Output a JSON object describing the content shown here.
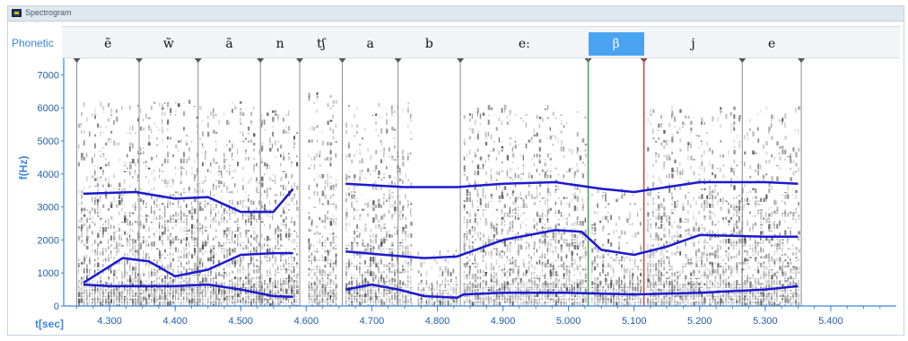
{
  "window": {
    "title": "Spectrogram"
  },
  "phonetic": {
    "label": "Phonetic",
    "segments": [
      {
        "symbol": "ẽ",
        "start": 4.25,
        "end": 4.345
      },
      {
        "symbol": "w̃",
        "start": 4.345,
        "end": 4.435
      },
      {
        "symbol": "ã",
        "start": 4.435,
        "end": 4.53
      },
      {
        "symbol": "n",
        "start": 4.53,
        "end": 4.59
      },
      {
        "symbol": "tʃ",
        "start": 4.59,
        "end": 4.655
      },
      {
        "symbol": "a",
        "start": 4.655,
        "end": 4.74
      },
      {
        "symbol": "b",
        "start": 4.74,
        "end": 4.835
      },
      {
        "symbol": "eː",
        "start": 4.835,
        "end": 5.03
      },
      {
        "symbol": "β",
        "start": 5.03,
        "end": 5.115
      },
      {
        "symbol": "j",
        "start": 5.115,
        "end": 5.265
      },
      {
        "symbol": "e",
        "start": 5.265,
        "end": 5.355
      }
    ],
    "selected_index": 8
  },
  "axes": {
    "y_label": "f(Hz)",
    "x_label": "t[sec]",
    "y_ticks": [
      "0",
      "1000",
      "2000",
      "3000",
      "4000",
      "5000",
      "6000",
      "7000"
    ],
    "x_ticks": [
      "4.300",
      "4.400",
      "4.500",
      "4.600",
      "4.700",
      "4.800",
      "4.900",
      "5.000",
      "5.100",
      "5.200",
      "5.300",
      "5.400"
    ]
  },
  "colors": {
    "formant": "#1a1ad0",
    "axis": "#3a86d8",
    "cursor_start": "#3fa64a",
    "cursor_end": "#d84040",
    "boundary": "#8a8a8a",
    "selected_segment": "#4aa3f0"
  },
  "chart_data": {
    "type": "line",
    "x_range": [
      4.23,
      5.5
    ],
    "y_range": [
      0,
      7500
    ],
    "cursor_start": 5.03,
    "cursor_end": 5.115,
    "boundaries": [
      4.25,
      4.345,
      4.435,
      4.53,
      4.59,
      4.655,
      4.74,
      4.835,
      5.03,
      5.115,
      5.265,
      5.355
    ],
    "energy_regions": [
      {
        "start": 4.252,
        "end": 4.585,
        "top": 6200
      },
      {
        "start": 4.603,
        "end": 4.645,
        "top": 6400
      },
      {
        "start": 4.66,
        "end": 4.76,
        "top": 6200
      },
      {
        "start": 4.77,
        "end": 4.83,
        "top": 1800
      },
      {
        "start": 4.84,
        "end": 5.025,
        "top": 6000
      },
      {
        "start": 5.035,
        "end": 5.11,
        "top": 3500
      },
      {
        "start": 5.12,
        "end": 5.35,
        "top": 6000
      }
    ],
    "series": [
      {
        "name": "F1",
        "points": [
          [
            4.26,
            650
          ],
          [
            4.3,
            600
          ],
          [
            4.4,
            600
          ],
          [
            4.45,
            650
          ],
          [
            4.5,
            500
          ],
          [
            4.55,
            300
          ],
          [
            4.58,
            280
          ],
          null,
          [
            4.66,
            500
          ],
          [
            4.7,
            650
          ],
          [
            4.74,
            500
          ],
          [
            4.78,
            300
          ],
          [
            4.83,
            250
          ],
          [
            4.84,
            350
          ],
          [
            4.9,
            400
          ],
          [
            5.0,
            400
          ],
          [
            5.1,
            350
          ],
          [
            5.2,
            400
          ],
          [
            5.3,
            500
          ],
          [
            5.35,
            600
          ]
        ]
      },
      {
        "name": "F2",
        "points": [
          [
            4.26,
            700
          ],
          [
            4.32,
            1450
          ],
          [
            4.36,
            1350
          ],
          [
            4.4,
            900
          ],
          [
            4.45,
            1100
          ],
          [
            4.5,
            1550
          ],
          [
            4.55,
            1600
          ],
          [
            4.58,
            1600
          ],
          null,
          [
            4.66,
            1650
          ],
          [
            4.72,
            1550
          ],
          [
            4.78,
            1450
          ],
          [
            4.83,
            1500
          ],
          [
            4.9,
            2000
          ],
          [
            4.98,
            2300
          ],
          [
            5.02,
            2250
          ],
          [
            5.05,
            1700
          ],
          [
            5.1,
            1550
          ],
          [
            5.15,
            1800
          ],
          [
            5.2,
            2150
          ],
          [
            5.3,
            2100
          ],
          [
            5.35,
            2100
          ]
        ]
      },
      {
        "name": "F3",
        "points": [
          [
            4.26,
            3400
          ],
          [
            4.34,
            3450
          ],
          [
            4.4,
            3250
          ],
          [
            4.45,
            3300
          ],
          [
            4.5,
            2850
          ],
          [
            4.55,
            2850
          ],
          [
            4.58,
            3550
          ],
          null,
          [
            4.66,
            3700
          ],
          [
            4.75,
            3600
          ],
          [
            4.83,
            3600
          ],
          [
            4.9,
            3700
          ],
          [
            4.98,
            3750
          ],
          [
            5.05,
            3550
          ],
          [
            5.1,
            3450
          ],
          [
            5.15,
            3600
          ],
          [
            5.2,
            3750
          ],
          [
            5.3,
            3750
          ],
          [
            5.35,
            3700
          ]
        ]
      }
    ]
  }
}
